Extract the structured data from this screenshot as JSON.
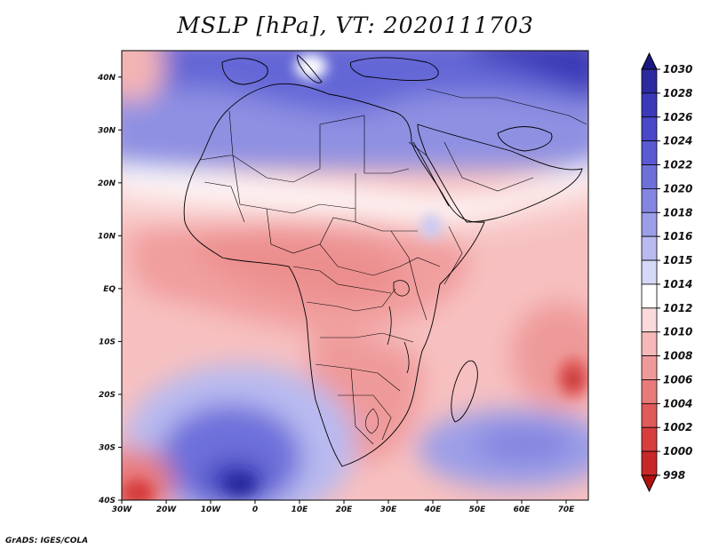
{
  "title": "MSLP [hPa], VT: 2020111703",
  "credit": "GrADS: IGES/COLA",
  "map": {
    "lon_range": [
      -30,
      75
    ],
    "lat_range": [
      -40,
      45
    ],
    "lon_ticks": [
      {
        "value": -30,
        "label": "30W"
      },
      {
        "value": -20,
        "label": "20W"
      },
      {
        "value": -10,
        "label": "10W"
      },
      {
        "value": 0,
        "label": "0"
      },
      {
        "value": 10,
        "label": "10E"
      },
      {
        "value": 20,
        "label": "20E"
      },
      {
        "value": 30,
        "label": "30E"
      },
      {
        "value": 40,
        "label": "40E"
      },
      {
        "value": 50,
        "label": "50E"
      },
      {
        "value": 60,
        "label": "60E"
      },
      {
        "value": 70,
        "label": "70E"
      }
    ],
    "lat_ticks": [
      {
        "value": 40,
        "label": "40N"
      },
      {
        "value": 30,
        "label": "30N"
      },
      {
        "value": 20,
        "label": "20N"
      },
      {
        "value": 10,
        "label": "10N"
      },
      {
        "value": 0,
        "label": "EQ"
      },
      {
        "value": -10,
        "label": "10S"
      },
      {
        "value": -20,
        "label": "20S"
      },
      {
        "value": -30,
        "label": "30S"
      },
      {
        "value": -40,
        "label": "40S"
      }
    ]
  },
  "colorbar": {
    "levels": [
      "1030",
      "1028",
      "1026",
      "1024",
      "1022",
      "1020",
      "1018",
      "1016",
      "1015",
      "1014",
      "1012",
      "1010",
      "1008",
      "1006",
      "1004",
      "1002",
      "1000",
      "998"
    ],
    "colors": [
      "#2c2a9e",
      "#3a3ab8",
      "#4848c8",
      "#5a5ad4",
      "#6e70da",
      "#8486e0",
      "#9c9ee8",
      "#b8baf0",
      "#d6d8f7",
      "#ffffff",
      "#fadada",
      "#f6b8b8",
      "#ef9a9a",
      "#e87a7a",
      "#e05a5a",
      "#d63e3e",
      "#c82828",
      "#b81818"
    ],
    "top_arrow_color": "#1a1880",
    "bottom_arrow_color": "#b01010"
  }
}
